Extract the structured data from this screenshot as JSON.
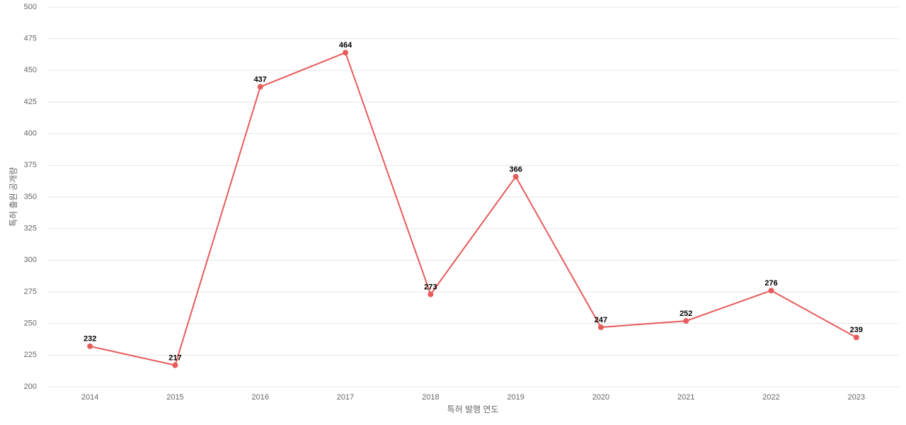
{
  "chart_data": {
    "type": "line",
    "x_label": "특허 발행 연도",
    "y_label": "특허 출원 공개량",
    "categories": [
      "2014",
      "2015",
      "2016",
      "2017",
      "2018",
      "2019",
      "2020",
      "2021",
      "2022",
      "2023"
    ],
    "values": [
      232,
      217,
      437,
      464,
      273,
      366,
      247,
      252,
      276,
      239
    ],
    "color": "#e85b5b",
    "ylim": [
      200,
      500
    ],
    "yticks": [
      200,
      225,
      250,
      275,
      300,
      325,
      350,
      375,
      400,
      425,
      450,
      475,
      500
    ],
    "grid": true,
    "data_labels": true
  }
}
